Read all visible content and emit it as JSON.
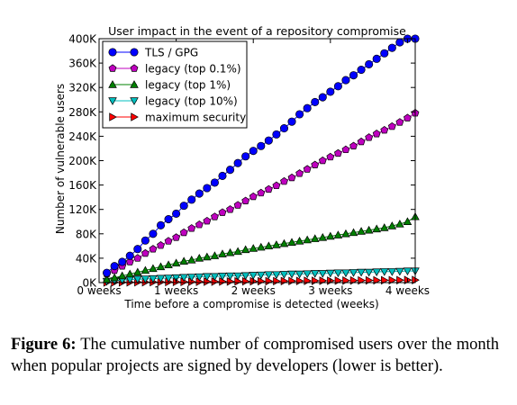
{
  "chart_data": {
    "type": "line",
    "title": "User impact in the event of a repository compromise",
    "xlabel": "Time before a compromise is detected (weeks)",
    "ylabel": "Number of vulnerable users",
    "xlim": [
      0,
      4.1
    ],
    "ylim": [
      0,
      400000
    ],
    "x_ticks": [
      0,
      1,
      2,
      3,
      4
    ],
    "x_tick_labels": [
      "0 weeks",
      "1 weeks",
      "2 weeks",
      "3 weeks",
      "4 weeks"
    ],
    "y_ticks": [
      0,
      40000,
      80000,
      120000,
      160000,
      200000,
      240000,
      280000,
      320000,
      360000,
      400000
    ],
    "y_tick_labels": [
      "0K",
      "40K",
      "80K",
      "120K",
      "160K",
      "200K",
      "240K",
      "280K",
      "320K",
      "360K",
      "400K"
    ],
    "legend_position": "top-left",
    "x": [
      0.1,
      0.2,
      0.3,
      0.4,
      0.5,
      0.6,
      0.7,
      0.8,
      0.9,
      1.0,
      1.1,
      1.2,
      1.3,
      1.4,
      1.5,
      1.6,
      1.7,
      1.8,
      1.9,
      2.0,
      2.1,
      2.2,
      2.3,
      2.4,
      2.5,
      2.6,
      2.7,
      2.8,
      2.9,
      3.0,
      3.1,
      3.2,
      3.3,
      3.4,
      3.5,
      3.6,
      3.7,
      3.8,
      3.9,
      4.0,
      4.1
    ],
    "series": [
      {
        "name": "TLS / GPG",
        "color": "#0000ff",
        "marker": "circle",
        "values": [
          16000,
          27000,
          34000,
          44000,
          55000,
          69000,
          80000,
          94000,
          104000,
          113000,
          126000,
          136000,
          146000,
          155000,
          164000,
          175000,
          185000,
          196000,
          207000,
          216000,
          224000,
          233000,
          243000,
          253000,
          264000,
          276000,
          286000,
          296000,
          304000,
          313000,
          322000,
          332000,
          340000,
          349000,
          358000,
          367000,
          376000,
          385000,
          394000,
          400000,
          400000
        ]
      },
      {
        "name": "legacy (top 0.1%)",
        "color": "#bf00bf",
        "marker": "pentagon",
        "values": [
          14000,
          20000,
          27000,
          34000,
          40000,
          48000,
          55000,
          61000,
          68000,
          74000,
          82000,
          89000,
          95000,
          101000,
          108000,
          115000,
          120000,
          127000,
          134000,
          141000,
          147000,
          153000,
          159000,
          166000,
          172000,
          179000,
          186000,
          193000,
          200000,
          206000,
          212000,
          218000,
          224000,
          231000,
          238000,
          244000,
          250000,
          256000,
          263000,
          270000,
          278000
        ]
      },
      {
        "name": "legacy (top 1%)",
        "color": "#008000",
        "marker": "triangle-up",
        "values": [
          5000,
          8000,
          11000,
          14000,
          17000,
          20000,
          23000,
          26000,
          29000,
          32000,
          35000,
          37000,
          40000,
          42000,
          44000,
          47000,
          49000,
          51000,
          54000,
          56000,
          58000,
          60000,
          62000,
          64000,
          66000,
          68000,
          70000,
          72000,
          74000,
          76000,
          78000,
          80000,
          82000,
          84000,
          86000,
          88000,
          90000,
          93000,
          96000,
          100000,
          108000
        ]
      },
      {
        "name": "legacy (top 10%)",
        "color": "#00bfbf",
        "marker": "triangle-down",
        "values": [
          2000,
          3000,
          4000,
          5000,
          5500,
          6000,
          6500,
          7000,
          7500,
          8000,
          8500,
          9000,
          9500,
          10000,
          10000,
          10500,
          11000,
          11000,
          11500,
          12000,
          12500,
          13000,
          13000,
          13500,
          14000,
          14000,
          14500,
          15000,
          15000,
          15500,
          16000,
          16000,
          16500,
          17000,
          17000,
          17500,
          18000,
          18000,
          18500,
          19000,
          19000
        ]
      },
      {
        "name": "maximum security",
        "color": "#ff0000",
        "marker": "triangle-right",
        "values": [
          200,
          300,
          400,
          500,
          600,
          700,
          800,
          900,
          1000,
          1100,
          1200,
          1300,
          1400,
          1500,
          1600,
          1700,
          1800,
          1900,
          2000,
          2100,
          2200,
          2300,
          2400,
          2500,
          2600,
          2700,
          2800,
          2900,
          3000,
          3100,
          3200,
          3300,
          3400,
          3500,
          3600,
          3700,
          3800,
          3900,
          4000,
          4100,
          4200
        ]
      }
    ]
  },
  "caption": {
    "label": "Figure 6:",
    "text": "The cumulative number of compromised users over the month when popular projects are signed by developers (lower is better)."
  }
}
